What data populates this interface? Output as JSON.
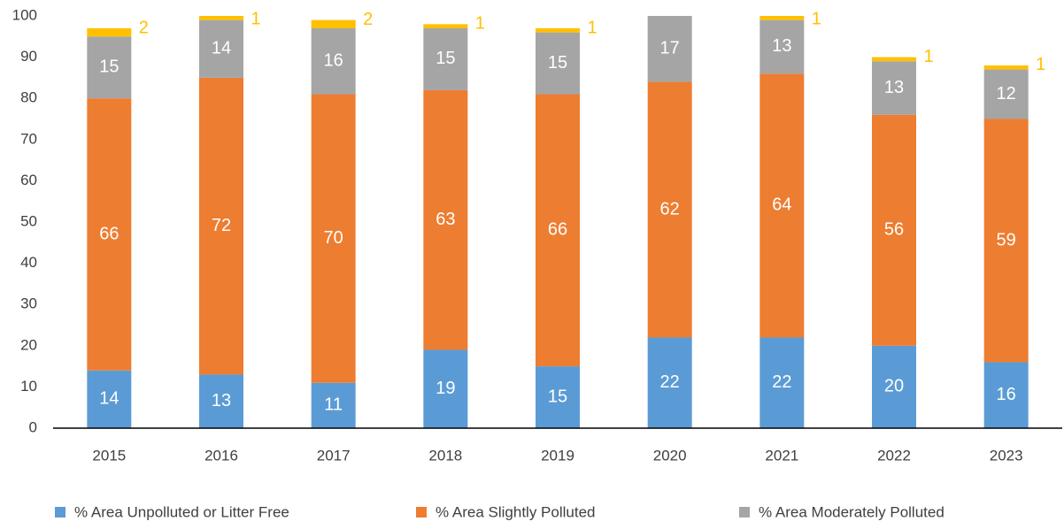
{
  "chart_data": {
    "type": "stacked_bar",
    "categories": [
      "2015",
      "2016",
      "2017",
      "2018",
      "2019",
      "2020",
      "2021",
      "2022",
      "2023"
    ],
    "series": [
      {
        "name": "% Area Unpolluted or Litter Free",
        "color": "#5b9bd5",
        "values": [
          14,
          13,
          11,
          19,
          15,
          22,
          22,
          20,
          16
        ]
      },
      {
        "name": "% Area Slightly Polluted",
        "color": "#ed7d31",
        "values": [
          66,
          72,
          70,
          63,
          66,
          62,
          64,
          56,
          59
        ]
      },
      {
        "name": "% Area Moderately Polluted",
        "color": "#a5a5a5",
        "values": [
          15,
          14,
          16,
          15,
          15,
          17,
          13,
          13,
          12
        ]
      },
      {
        "color": "#ffc000",
        "values": [
          2,
          1,
          2,
          1,
          1,
          null,
          1,
          1,
          1
        ]
      }
    ],
    "ylim": [
      0,
      100
    ],
    "yticks": [
      0,
      10,
      20,
      30,
      40,
      50,
      60,
      70,
      80,
      90,
      100
    ],
    "grid": false
  }
}
